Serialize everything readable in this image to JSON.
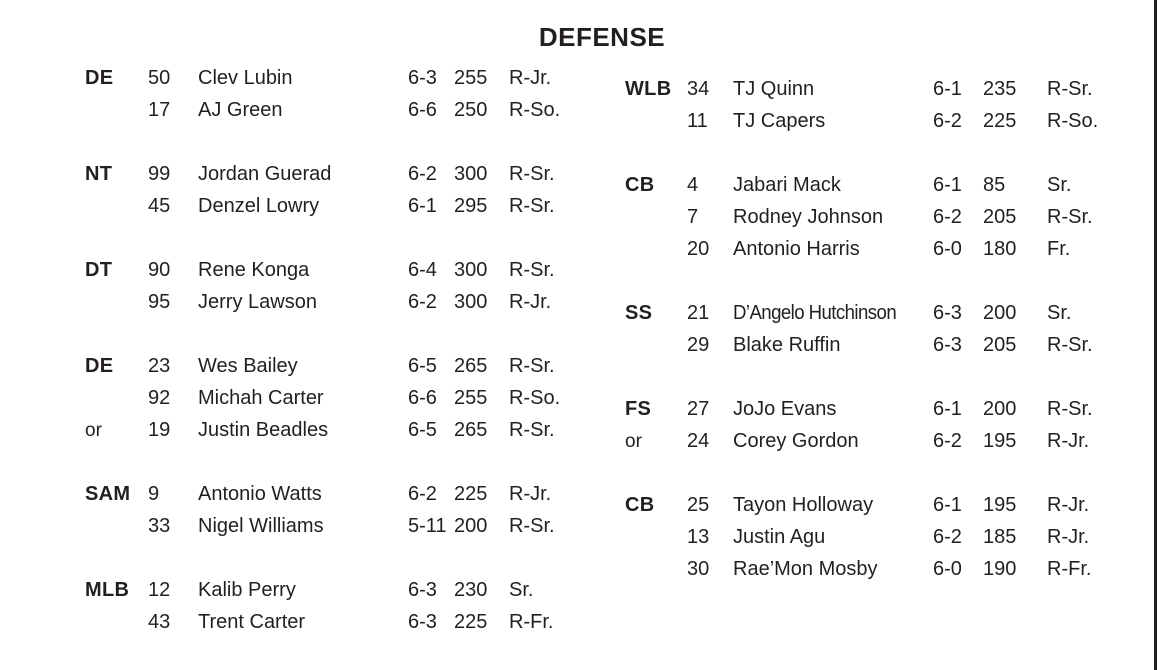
{
  "title": "DEFENSE",
  "text_color": "#231f20",
  "edge_rule_color": "#221e1f",
  "columns": [
    {
      "side": "left",
      "groups": [
        {
          "position": "DE",
          "players": [
            {
              "number": "50",
              "name": "Clev Lubin",
              "height": "6-3",
              "weight": "255",
              "class_year": "R-Jr."
            },
            {
              "number": "17",
              "name": "AJ Green",
              "height": "6-6",
              "weight": "250",
              "class_year": "R-So."
            }
          ]
        },
        {
          "position": "NT",
          "players": [
            {
              "number": "99",
              "name": "Jordan Guerad",
              "height": "6-2",
              "weight": "300",
              "class_year": "R-Sr."
            },
            {
              "number": "45",
              "name": "Denzel Lowry",
              "height": "6-1",
              "weight": "295",
              "class_year": "R-Sr."
            }
          ]
        },
        {
          "position": "DT",
          "players": [
            {
              "number": "90",
              "name": "Rene Konga",
              "height": "6-4",
              "weight": "300",
              "class_year": "R-Sr."
            },
            {
              "number": "95",
              "name": "Jerry Lawson",
              "height": "6-2",
              "weight": "300",
              "class_year": "R-Jr."
            }
          ]
        },
        {
          "position": "DE",
          "players": [
            {
              "number": "23",
              "name": "Wes Bailey",
              "height": "6-5",
              "weight": "265",
              "class_year": "R-Sr."
            },
            {
              "number": "92",
              "name": "Michah Carter",
              "height": "6-6",
              "weight": "255",
              "class_year": "R-So."
            },
            {
              "or_label": "or",
              "number": "19",
              "name": "Justin Beadles",
              "height": "6-5",
              "weight": "265",
              "class_year": "R-Sr."
            }
          ]
        },
        {
          "position": "SAM",
          "players": [
            {
              "number": "9",
              "name": "Antonio Watts",
              "height": "6-2",
              "weight": "225",
              "class_year": "R-Jr."
            },
            {
              "number": "33",
              "name": "Nigel Williams",
              "height": "5-11",
              "weight": "200",
              "class_year": "R-Sr."
            }
          ]
        },
        {
          "position": "MLB",
          "players": [
            {
              "number": "12",
              "name": "Kalib Perry",
              "height": "6-3",
              "weight": "230",
              "class_year": "Sr."
            },
            {
              "number": "43",
              "name": "Trent Carter",
              "height": "6-3",
              "weight": "225",
              "class_year": "R-Fr."
            }
          ]
        }
      ]
    },
    {
      "side": "right",
      "groups": [
        {
          "position": "WLB",
          "players": [
            {
              "number": "34",
              "name": "TJ Quinn",
              "height": "6-1",
              "weight": "235",
              "class_year": "R-Sr."
            },
            {
              "number": "11",
              "name": "TJ Capers",
              "height": "6-2",
              "weight": "225",
              "class_year": "R-So."
            }
          ]
        },
        {
          "position": "CB",
          "players": [
            {
              "number": "4",
              "name": "Jabari Mack",
              "height": "6-1",
              "weight": "85",
              "class_year": "Sr."
            },
            {
              "number": "7",
              "name": "Rodney Johnson",
              "height": "6-2",
              "weight": "205",
              "class_year": "R-Sr."
            },
            {
              "number": "20",
              "name": "Antonio Harris",
              "height": "6-0",
              "weight": "180",
              "class_year": "Fr."
            }
          ]
        },
        {
          "position": "SS",
          "players": [
            {
              "number": "21",
              "name": "D’Angelo Hutchinson",
              "height": "6-3",
              "weight": "200",
              "class_year": "Sr."
            },
            {
              "number": "29",
              "name": "Blake Ruffin",
              "height": "6-3",
              "weight": "205",
              "class_year": "R-Sr."
            }
          ]
        },
        {
          "position": "FS",
          "players": [
            {
              "number": "27",
              "name": "JoJo Evans",
              "height": "6-1",
              "weight": "200",
              "class_year": "R-Sr."
            },
            {
              "or_label": "or",
              "number": "24",
              "name": "Corey Gordon",
              "height": "6-2",
              "weight": "195",
              "class_year": "R-Jr."
            }
          ]
        },
        {
          "position": "CB",
          "players": [
            {
              "number": "25",
              "name": "Tayon Holloway",
              "height": "6-1",
              "weight": "195",
              "class_year": "R-Jr."
            },
            {
              "number": "13",
              "name": "Justin Agu",
              "height": "6-2",
              "weight": "185",
              "class_year": "R-Jr."
            },
            {
              "number": "30",
              "name": "Rae’Mon Mosby",
              "height": "6-0",
              "weight": "190",
              "class_year": "R-Fr."
            }
          ]
        }
      ]
    }
  ]
}
